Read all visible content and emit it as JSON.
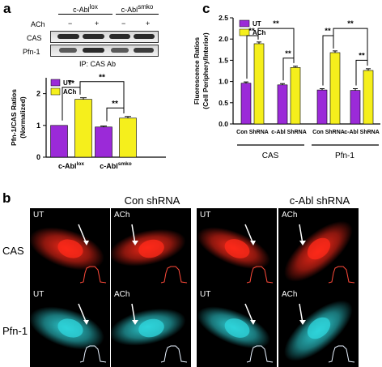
{
  "panel_labels": {
    "a": "a",
    "b": "b",
    "c": "c"
  },
  "blot": {
    "genotype_headers": [
      "c-Abl",
      "c-Abl"
    ],
    "genotype_supers": [
      "lox",
      "smko"
    ],
    "ach_label": "ACh",
    "ach_signs": [
      "−",
      "+",
      "−",
      "+"
    ],
    "rows": [
      "CAS",
      "Pfn-1"
    ],
    "ip_label": "IP: CAS Ab"
  },
  "chart_data": [
    {
      "type": "bar",
      "ylabel": "Pfn-1/CAS  Ratios (Normalized)",
      "ylim": [
        0,
        2.5
      ],
      "yticks": [
        "0",
        "1",
        "2"
      ],
      "categories": [
        "c-Abl",
        "c-Abl"
      ],
      "category_supers": [
        "lox",
        "smko"
      ],
      "series": [
        {
          "name": "UT",
          "values": [
            1.0,
            0.95
          ],
          "errors": [
            0,
            0.03
          ]
        },
        {
          "name": "ACh",
          "values": [
            1.82,
            1.23
          ],
          "errors": [
            0.05,
            0.05
          ]
        }
      ],
      "annotations": [
        "**",
        "**",
        "**"
      ],
      "legend_position": "top-left",
      "colors": {
        "UT": "#9b2ad8",
        "ACh": "#f5ef1c"
      }
    },
    {
      "type": "bar",
      "ylabel": "Fluorescence Ratios (Cell Periphery/Interior)",
      "ylim": [
        0.0,
        2.5
      ],
      "yticks": [
        "0.0",
        "0.5",
        "1.0",
        "1.5",
        "2.0",
        "2.5"
      ],
      "categories": [
        "Con ShRNA",
        "c-Abl ShRNA",
        "Con ShRNA",
        "c-Abl ShRNA"
      ],
      "groups": [
        "CAS",
        "Pfn-1"
      ],
      "series": [
        {
          "name": "UT",
          "values": [
            0.96,
            0.92,
            0.8,
            0.79
          ],
          "errors": [
            0.03,
            0.03,
            0.03,
            0.04
          ]
        },
        {
          "name": "ACh",
          "values": [
            1.89,
            1.33,
            1.68,
            1.26
          ],
          "errors": [
            0.04,
            0.03,
            0.04,
            0.04
          ]
        }
      ],
      "annotations": [
        "**",
        "**",
        "**",
        "**",
        "**",
        "**"
      ],
      "legend_position": "top-left",
      "colors": {
        "UT": "#9b2ad8",
        "ACh": "#f5ef1c"
      }
    }
  ],
  "micrographs": {
    "column_titles": [
      "Con shRNA",
      "c-Abl shRNA"
    ],
    "row_titles": [
      "CAS",
      "Pfn-1"
    ],
    "tags": [
      "UT",
      "ACh",
      "UT",
      "ACh"
    ],
    "colors": {
      "CAS": "#ff2a1a",
      "Pfn-1": "#2fd6dc"
    }
  }
}
